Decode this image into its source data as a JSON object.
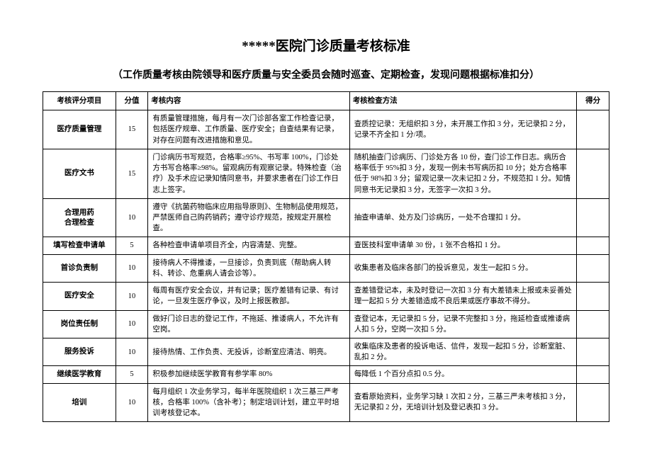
{
  "title": "*****医院门诊质量考核标准",
  "subtitle": "（工作质量考核由院领导和医疗质量与安全委员会随时巡查、定期检查，发现问题根据标准扣分）",
  "headers": {
    "item": "考核评分项目",
    "score": "分值",
    "content": "考核内容",
    "method": "考核检查方法",
    "result": "得分"
  },
  "rows": [
    {
      "item": "医疗质量管理",
      "score": "15",
      "content": "有质量管理措施，每月有一次门诊部各室工作检查记录，包括医疗规章、工作质量、医疗安全；自查结果有记录，对存在问题有改进措施和意见。",
      "method": "查质控记录：无组织扣 3 分，未开展工作扣 3 分，无记录扣 2 分，记录不齐全扣 1 分/项。",
      "result": ""
    },
    {
      "item": "医疗文书",
      "score": "15",
      "content": "门诊病历书写规范，合格率≥95%、书写率 100%，门诊处方书写合格率≥98%。留观病历有观察记录。特殊检查（治疗）及手术应记录知情同意书，并要求患者在门诊工作日志上签字。",
      "method": "随机抽查门诊病历、门诊处方各 10 份，查门诊工作日志。病历合格率低于 95%扣 3 分，发现一例未书写病历扣 10 分；处方合格率低于 98%扣 3 分；留观记录一次未记扣 2 分，不规范扣 1 分。知情同意书无记录扣 3 分，无签字一次扣 3 分。",
      "result": ""
    },
    {
      "item": "合理用药\n合理检查",
      "score": "10",
      "content": "遵守《抗菌药物临床应用指导原则》、生物制品使用规范，严禁医师自己购药销药；遵守诊疗规范，按规定开展检查。",
      "method": "抽查申请单、处方及门诊病历，一处不合理扣 1 分。",
      "result": ""
    },
    {
      "item": "填写检查申请单",
      "score": "5",
      "content": "各种检查申请单项目齐全，内容清楚、完整。",
      "method": "查医技科室申请单 30 份，1 张不合格扣 1 分。",
      "result": ""
    },
    {
      "item": "首诊负责制",
      "score": "10",
      "content": "接待病人不得推诿，一旦接诊，负责到底（帮助病人转科、转诊、危重病人请会诊等）。",
      "method": "收集患者及临床各部门的投诉意见，发生一起扣 5 分。",
      "result": ""
    },
    {
      "item": "医疗安全",
      "score": "10",
      "content": "每周有医疗安全会议，并有记录；医疗差错有记录、有讨论，一旦发生医疗争议，及时上报医教部。",
      "method": "查差错登记本，未及时登记一次扣 3 分  有大差错未上报或未妥善处理一起扣 5 分  大差错造成不良后果或医疗事故不得分。",
      "result": ""
    },
    {
      "item": "岗位责任制",
      "score": "10",
      "content": "做好门诊日志的登记工作，不拖延、推诿病人，不允许有空岗。",
      "method": "查登记本，无记录扣 5 分，记录不完整扣 3 分，拖延检查或推诿病人扣 5 分，空岗一次扣 5 分。",
      "result": ""
    },
    {
      "item": "服务投诉",
      "score": "10",
      "content": "接待热情、工作负责、无投诉，诊断室应清洁、明亮。",
      "method": "收集临床及患者的投诉电话、信件，发现一起扣 5 分，诊断室脏、乱扣 2 分。",
      "result": ""
    },
    {
      "item": "继续医学教育",
      "score": "5",
      "content": "积极参加继续医学教育有参学率 80%",
      "method": "每降低 1 个百分点扣 0.5 分。",
      "result": ""
    },
    {
      "item": "培训",
      "score": "10",
      "content": "每月组织 1 次业务学习，每半年医院组织 1 次三基三严考核，合格率 100%（含补考）；制定培训计划，建立平时培训考核登记本。",
      "method": "查看原始资料，业务学习缺 1 次扣 2 分，三基三严未考核扣 3 分，无记录扣 2 分，无培训计划及登记表扣 3 分。",
      "result": ""
    }
  ]
}
